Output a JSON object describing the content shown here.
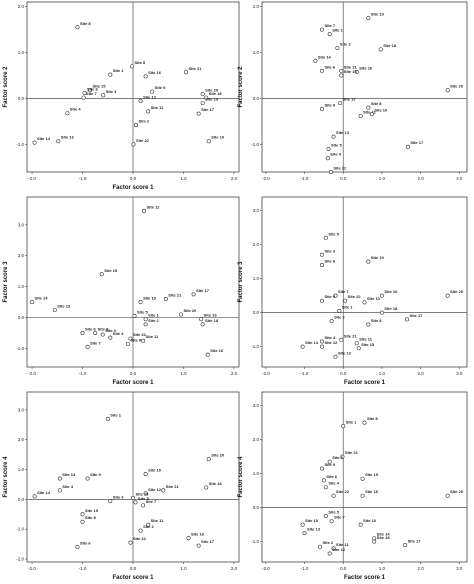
{
  "chart_data": [
    {
      "type": "scatter",
      "xlabel": "Factor score 1",
      "ylabel": "Factor score 2",
      "xlim": [
        -2.1,
        2.1
      ],
      "ylim": [
        -1.6,
        2.1
      ],
      "xticks": [
        -2.0,
        -1.0,
        0.0,
        1.0,
        2.0
      ],
      "yticks": [
        -1.0,
        0.0,
        1.0,
        2.0
      ],
      "points": [
        {
          "label": "Site 8",
          "x": -1.1,
          "y": 1.55
        },
        {
          "label": "Site 5",
          "x": -0.02,
          "y": 0.7
        },
        {
          "label": "Site 1",
          "x": -0.45,
          "y": 0.52
        },
        {
          "label": "Site 16",
          "x": 0.25,
          "y": 0.48
        },
        {
          "label": "Site 21",
          "x": 1.05,
          "y": 0.57
        },
        {
          "label": "Site 15",
          "x": -0.85,
          "y": 0.18
        },
        {
          "label": "Site 6",
          "x": -0.96,
          "y": 0.12
        },
        {
          "label": "Site 3",
          "x": -0.59,
          "y": 0.07
        },
        {
          "label": "Site 7",
          "x": -0.98,
          "y": 0.02
        },
        {
          "label": "Site 9",
          "x": 0.38,
          "y": 0.15
        },
        {
          "label": "Site 12",
          "x": 0.15,
          "y": -0.05
        },
        {
          "label": "Site 20",
          "x": 1.38,
          "y": 0.1
        },
        {
          "label": "Site 18",
          "x": 1.45,
          "y": 0.02
        },
        {
          "label": "Site 19",
          "x": 1.38,
          "y": -0.1
        },
        {
          "label": "Site 4",
          "x": -1.3,
          "y": -0.32
        },
        {
          "label": "Site 11",
          "x": 0.3,
          "y": -0.28
        },
        {
          "label": "Site 17",
          "x": 1.3,
          "y": -0.33
        },
        {
          "label": "Site 2",
          "x": 0.06,
          "y": -0.58
        },
        {
          "label": "Site 14",
          "x": -1.95,
          "y": -0.96
        },
        {
          "label": "Site 13",
          "x": -1.48,
          "y": -0.93
        },
        {
          "label": "Site 22",
          "x": 0.01,
          "y": -1.0
        },
        {
          "label": "Site 10",
          "x": 1.5,
          "y": -0.93
        }
      ]
    },
    {
      "type": "scatter",
      "xlabel": "",
      "ylabel": "Factor score 2",
      "xlim": [
        -2.1,
        3.2
      ],
      "ylim": [
        -1.6,
        2.1
      ],
      "xticks": [
        -2.0,
        -1.0,
        0.0,
        1.0,
        2.0,
        3.0
      ],
      "yticks": [
        -1.0,
        0.0,
        1.0,
        2.0
      ],
      "points": [
        {
          "label": "Site 19",
          "x": 0.65,
          "y": 1.75
        },
        {
          "label": "Site 7",
          "x": -0.55,
          "y": 1.5
        },
        {
          "label": "Site 1",
          "x": -0.35,
          "y": 1.4
        },
        {
          "label": "Site 3",
          "x": -0.15,
          "y": 1.1
        },
        {
          "label": "Site 18",
          "x": 0.97,
          "y": 1.07
        },
        {
          "label": "Site 14",
          "x": -0.72,
          "y": 0.82
        },
        {
          "label": "Site 6",
          "x": -0.55,
          "y": 0.6
        },
        {
          "label": "Site 21",
          "x": -0.05,
          "y": 0.6
        },
        {
          "label": "Site 16",
          "x": 0.35,
          "y": 0.58
        },
        {
          "label": "Site 15",
          "x": -0.05,
          "y": 0.5
        },
        {
          "label": "Site 20",
          "x": 2.7,
          "y": 0.18
        },
        {
          "label": "Site 12",
          "x": -0.08,
          "y": -0.1
        },
        {
          "label": "Site 9",
          "x": -0.55,
          "y": -0.23
        },
        {
          "label": "Site 8",
          "x": 0.65,
          "y": -0.2
        },
        {
          "label": "Site 11",
          "x": 0.45,
          "y": -0.38
        },
        {
          "label": "Site 10",
          "x": 0.74,
          "y": -0.34
        },
        {
          "label": "Site 13",
          "x": -0.25,
          "y": -0.83
        },
        {
          "label": "Site 17",
          "x": 1.67,
          "y": -1.05
        },
        {
          "label": "Site 5",
          "x": -0.38,
          "y": -1.1
        },
        {
          "label": "Site 4",
          "x": -0.4,
          "y": -1.3
        },
        {
          "label": "Site 22",
          "x": -0.32,
          "y": -1.6
        }
      ]
    },
    {
      "type": "scatter",
      "xlabel": "Factor score 1",
      "ylabel": "Factor score 3",
      "xlim": [
        -2.1,
        2.1
      ],
      "ylim": [
        -1.6,
        3.9
      ],
      "xticks": [
        -2.0,
        -1.0,
        0.0,
        1.0,
        2.0
      ],
      "yticks": [
        -1.0,
        0.0,
        1.0,
        2.0,
        3.0
      ],
      "points": [
        {
          "label": "Site 12",
          "x": 0.22,
          "y": 3.45
        },
        {
          "label": "Site 15",
          "x": -0.62,
          "y": 1.4
        },
        {
          "label": "Site 14",
          "x": -2.0,
          "y": 0.5
        },
        {
          "label": "Site 17",
          "x": 1.2,
          "y": 0.75
        },
        {
          "label": "Site 21",
          "x": 0.65,
          "y": 0.6
        },
        {
          "label": "Site 10",
          "x": 0.15,
          "y": 0.5
        },
        {
          "label": "Site 13",
          "x": -1.55,
          "y": 0.25
        },
        {
          "label": "Site 20",
          "x": 0.95,
          "y": 0.1
        },
        {
          "label": "Site 5",
          "x": 0.03,
          "y": 0.05
        },
        {
          "label": "Site 19",
          "x": 1.35,
          "y": -0.05
        },
        {
          "label": "Site 1",
          "x": 0.25,
          "y": -0.05
        },
        {
          "label": "Site 2",
          "x": 0.25,
          "y": -0.22
        },
        {
          "label": "Site 18",
          "x": 1.38,
          "y": -0.22
        },
        {
          "label": "Site 6",
          "x": -1.0,
          "y": -0.5
        },
        {
          "label": "Site 8",
          "x": -0.75,
          "y": -0.5
        },
        {
          "label": "Site 3",
          "x": -0.6,
          "y": -0.55
        },
        {
          "label": "Site 4",
          "x": -0.45,
          "y": -0.65
        },
        {
          "label": "Site 22",
          "x": -0.05,
          "y": -0.68
        },
        {
          "label": "Site 9",
          "x": -0.1,
          "y": -0.85
        },
        {
          "label": "Site 11",
          "x": 0.2,
          "y": -0.75
        },
        {
          "label": "Site 7",
          "x": -0.9,
          "y": -0.95
        },
        {
          "label": "Site 16",
          "x": 1.48,
          "y": -1.2
        }
      ]
    },
    {
      "type": "scatter",
      "xlabel": "Factor score 1",
      "ylabel": "Factor score 3",
      "xlim": [
        -2.1,
        3.2
      ],
      "ylim": [
        -1.6,
        3.4
      ],
      "xticks": [
        -2.0,
        -1.0,
        0.0,
        1.0,
        2.0,
        3.0
      ],
      "yticks": [
        -1.0,
        0.0,
        1.0,
        2.0,
        3.0
      ],
      "points": [
        {
          "label": "Site 5",
          "x": -0.45,
          "y": 2.2
        },
        {
          "label": "Site 3",
          "x": -0.55,
          "y": 1.7
        },
        {
          "label": "Site 6",
          "x": -0.55,
          "y": 1.4
        },
        {
          "label": "Site 19",
          "x": 0.65,
          "y": 1.5
        },
        {
          "label": "Site 16",
          "x": 1.0,
          "y": 0.5
        },
        {
          "label": "Site 7",
          "x": -0.2,
          "y": 0.5
        },
        {
          "label": "Site 20",
          "x": 2.7,
          "y": 0.5
        },
        {
          "label": "Site 9",
          "x": -0.55,
          "y": 0.35
        },
        {
          "label": "Site 22",
          "x": 0.05,
          "y": 0.35
        },
        {
          "label": "Site 10",
          "x": 0.55,
          "y": 0.3
        },
        {
          "label": "Site 1",
          "x": -0.1,
          "y": 0.05
        },
        {
          "label": "Site 18",
          "x": 1.0,
          "y": 0.0
        },
        {
          "label": "Site 17",
          "x": 1.65,
          "y": -0.2
        },
        {
          "label": "Site 2",
          "x": -0.3,
          "y": -0.25
        },
        {
          "label": "Site 8",
          "x": 0.65,
          "y": -0.35
        },
        {
          "label": "Site 21",
          "x": -0.05,
          "y": -0.8
        },
        {
          "label": "Site 4",
          "x": -0.55,
          "y": -0.85
        },
        {
          "label": "Site 14",
          "x": -1.05,
          "y": -1.0
        },
        {
          "label": "Site 12",
          "x": -0.55,
          "y": -1.0
        },
        {
          "label": "Site 13",
          "x": -0.2,
          "y": -1.3
        },
        {
          "label": "Site 11",
          "x": 0.35,
          "y": -0.9
        },
        {
          "label": "Site 15",
          "x": 0.4,
          "y": -1.05
        }
      ]
    },
    {
      "type": "scatter",
      "xlabel": "Factor score 1",
      "ylabel": "Factor score 4",
      "xlim": [
        -2.1,
        2.1
      ],
      "ylim": [
        -2.1,
        3.6
      ],
      "xticks": [
        -2.0,
        -1.0,
        0.0,
        1.0,
        2.0
      ],
      "yticks": [
        -2.0,
        -1.0,
        0.0,
        1.0,
        2.0,
        3.0
      ],
      "points": [
        {
          "label": "Site 1",
          "x": -0.5,
          "y": 2.7
        },
        {
          "label": "Site 20",
          "x": 1.5,
          "y": 1.35
        },
        {
          "label": "Site 10",
          "x": 0.25,
          "y": 0.85
        },
        {
          "label": "Site 13",
          "x": -1.45,
          "y": 0.7
        },
        {
          "label": "Site 9",
          "x": -0.9,
          "y": 0.7
        },
        {
          "label": "Site 4",
          "x": -1.45,
          "y": 0.3
        },
        {
          "label": "Site 21",
          "x": 0.6,
          "y": 0.3
        },
        {
          "label": "Site 14",
          "x": -1.95,
          "y": 0.1
        },
        {
          "label": "Site 18",
          "x": 1.45,
          "y": 0.4
        },
        {
          "label": "Site 12",
          "x": 0.25,
          "y": 0.2
        },
        {
          "label": "Site 19",
          "x": 0.0,
          "y": 0.05
        },
        {
          "label": "Site 5",
          "x": 0.05,
          "y": -0.1
        },
        {
          "label": "Site 3",
          "x": -0.45,
          "y": -0.05
        },
        {
          "label": "Site 7",
          "x": 0.2,
          "y": -0.2
        },
        {
          "label": "Site 15",
          "x": -1.0,
          "y": -0.5
        },
        {
          "label": "Site 8",
          "x": -1.0,
          "y": -0.75
        },
        {
          "label": "Site 11",
          "x": 0.3,
          "y": -0.85
        },
        {
          "label": "Site 2",
          "x": 0.15,
          "y": -1.05
        },
        {
          "label": "Site 22",
          "x": -0.05,
          "y": -1.45
        },
        {
          "label": "Site 16",
          "x": 1.1,
          "y": -1.3
        },
        {
          "label": "Site 17",
          "x": 1.3,
          "y": -1.55
        },
        {
          "label": "Site 6",
          "x": -1.1,
          "y": -1.6
        }
      ]
    },
    {
      "type": "scatter",
      "xlabel": "Factor score 1",
      "ylabel": "Factor score 4",
      "xlim": [
        -2.1,
        3.2
      ],
      "ylim": [
        -1.6,
        3.4
      ],
      "xticks": [
        -2.0,
        -1.0,
        0.0,
        1.0,
        2.0,
        3.0
      ],
      "yticks": [
        -1.0,
        0.0,
        1.0,
        2.0,
        3.0
      ],
      "points": [
        {
          "label": "Site 8",
          "x": 0.55,
          "y": 2.5
        },
        {
          "label": "Site 1",
          "x": 0.0,
          "y": 2.4
        },
        {
          "label": "Site 21",
          "x": -0.02,
          "y": 1.5
        },
        {
          "label": "Site 3",
          "x": -0.35,
          "y": 1.35
        },
        {
          "label": "Site 9",
          "x": -0.55,
          "y": 1.15
        },
        {
          "label": "Site 6",
          "x": -0.5,
          "y": 0.8
        },
        {
          "label": "Site 19",
          "x": 0.5,
          "y": 0.85
        },
        {
          "label": "Site 4",
          "x": -0.45,
          "y": 0.6
        },
        {
          "label": "Site 22",
          "x": -0.25,
          "y": 0.35
        },
        {
          "label": "Site 16",
          "x": 0.5,
          "y": 0.35
        },
        {
          "label": "Site 20",
          "x": 2.7,
          "y": 0.35
        },
        {
          "label": "Site 5",
          "x": -0.45,
          "y": -0.25
        },
        {
          "label": "Site 7",
          "x": -0.3,
          "y": -0.4
        },
        {
          "label": "Site 15",
          "x": -1.05,
          "y": -0.5
        },
        {
          "label": "Site 10",
          "x": 0.45,
          "y": -0.5
        },
        {
          "label": "Site 13",
          "x": -1.0,
          "y": -0.75
        },
        {
          "label": "Site 14",
          "x": 0.8,
          "y": -0.9
        },
        {
          "label": "Site 18",
          "x": 0.8,
          "y": -1.0
        },
        {
          "label": "Site 2",
          "x": -0.6,
          "y": -1.15
        },
        {
          "label": "Site 11",
          "x": -0.25,
          "y": -1.2
        },
        {
          "label": "Site 17",
          "x": 1.6,
          "y": -1.1
        },
        {
          "label": "Site 12",
          "x": -0.35,
          "y": -1.35
        }
      ]
    }
  ]
}
